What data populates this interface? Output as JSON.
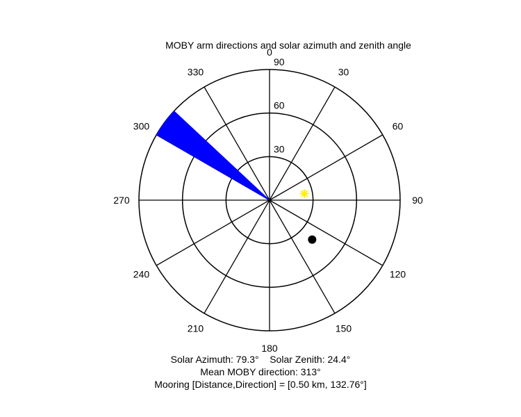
{
  "chart_data": {
    "type": "polar",
    "title": "MOBY arm directions and solar azimuth and zenith angle",
    "angular_axis": {
      "direction": "clockwise",
      "zero_at": "top",
      "unit": "degrees",
      "tick_labels": [
        "0",
        "30",
        "60",
        "90",
        "120",
        "150",
        "180",
        "210",
        "240",
        "270",
        "300",
        "330"
      ]
    },
    "radial_axis": {
      "quantity": "zenith angle",
      "range": [
        0,
        90
      ],
      "tick_labels": [
        "30",
        "60",
        "90"
      ]
    },
    "series": [
      {
        "kind": "wedge",
        "azimuth_range": [
          300,
          313
        ],
        "extent": 90,
        "color": "#0000ff"
      },
      {
        "kind": "point",
        "azimuth": 79.3,
        "zenith": 24.4,
        "color": "#ffee00",
        "marker": "asterisk"
      },
      {
        "kind": "point",
        "azimuth": 132.76,
        "zenith": 40,
        "color": "#000000",
        "marker": "dot"
      }
    ],
    "annotations": {
      "solar_azimuth": "Solar Azimuth: 79.3°",
      "solar_zenith": "Solar Zenith: 24.4°",
      "mean_moby": "Mean MOBY direction: 313°",
      "mooring": "Mooring [Distance,Direction] = [0.50 km, 132.76°]"
    },
    "grid": true,
    "legend": "none"
  }
}
